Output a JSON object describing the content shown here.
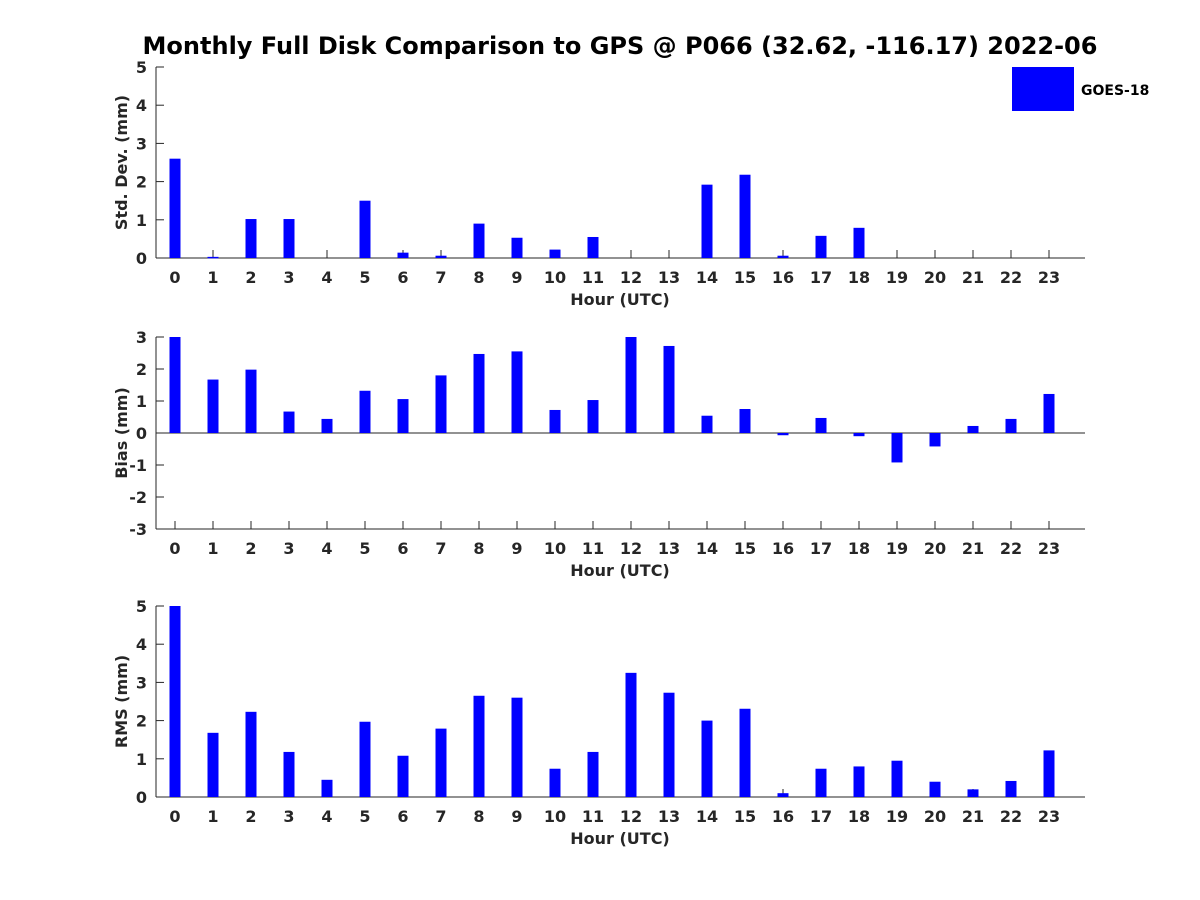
{
  "title": "Monthly Full Disk Comparison to GPS @ P066 (32.62, -116.17) 2022-06",
  "legend": {
    "label": "GOES-18",
    "color": "#0000ff"
  },
  "chart_data": [
    {
      "type": "bar",
      "name": "std-dev",
      "xlabel": "Hour (UTC)",
      "ylabel": "Std. Dev. (mm)",
      "ylim": [
        0,
        5
      ],
      "yticks": [
        0,
        1,
        2,
        3,
        4,
        5
      ],
      "categories": [
        "0",
        "1",
        "2",
        "3",
        "4",
        "5",
        "6",
        "7",
        "8",
        "9",
        "10",
        "11",
        "12",
        "13",
        "14",
        "15",
        "16",
        "17",
        "18",
        "19",
        "20",
        "21",
        "22",
        "23"
      ],
      "series": [
        {
          "name": "GOES-18",
          "color": "#0000ff",
          "values": [
            2.6,
            0.03,
            1.02,
            1.02,
            0,
            1.5,
            0.14,
            0.06,
            0.9,
            0.53,
            0.22,
            0.55,
            0,
            0,
            1.92,
            2.18,
            0.06,
            0.58,
            0.79,
            0,
            0,
            0,
            0,
            0
          ]
        }
      ],
      "legend": "top-right"
    },
    {
      "type": "bar",
      "name": "bias",
      "xlabel": "Hour (UTC)",
      "ylabel": "Bias (mm)",
      "ylim": [
        -3,
        3
      ],
      "yticks": [
        -3,
        -2,
        -1,
        0,
        1,
        2,
        3
      ],
      "categories": [
        "0",
        "1",
        "2",
        "3",
        "4",
        "5",
        "6",
        "7",
        "8",
        "9",
        "10",
        "11",
        "12",
        "13",
        "14",
        "15",
        "16",
        "17",
        "18",
        "19",
        "20",
        "21",
        "22",
        "23"
      ],
      "series": [
        {
          "name": "GOES-18",
          "color": "#0000ff",
          "values": [
            3.0,
            1.67,
            1.98,
            0.67,
            0.44,
            1.32,
            1.06,
            1.8,
            2.47,
            2.55,
            0.72,
            1.03,
            3.0,
            2.72,
            0.54,
            0.75,
            -0.07,
            0.47,
            -0.1,
            -0.92,
            -0.42,
            0.22,
            0.44,
            1.22
          ]
        }
      ]
    },
    {
      "type": "bar",
      "name": "rms",
      "xlabel": "Hour (UTC)",
      "ylabel": "RMS (mm)",
      "ylim": [
        0,
        5
      ],
      "yticks": [
        0,
        1,
        2,
        3,
        4,
        5
      ],
      "categories": [
        "0",
        "1",
        "2",
        "3",
        "4",
        "5",
        "6",
        "7",
        "8",
        "9",
        "10",
        "11",
        "12",
        "13",
        "14",
        "15",
        "16",
        "17",
        "18",
        "19",
        "20",
        "21",
        "22",
        "23"
      ],
      "series": [
        {
          "name": "GOES-18",
          "color": "#0000ff",
          "values": [
            5.0,
            1.68,
            2.23,
            1.18,
            0.45,
            1.97,
            1.08,
            1.79,
            2.65,
            2.6,
            0.74,
            1.18,
            3.25,
            2.73,
            2.0,
            2.31,
            0.1,
            0.74,
            0.8,
            0.95,
            0.4,
            0.2,
            0.42,
            1.22
          ]
        }
      ]
    }
  ]
}
